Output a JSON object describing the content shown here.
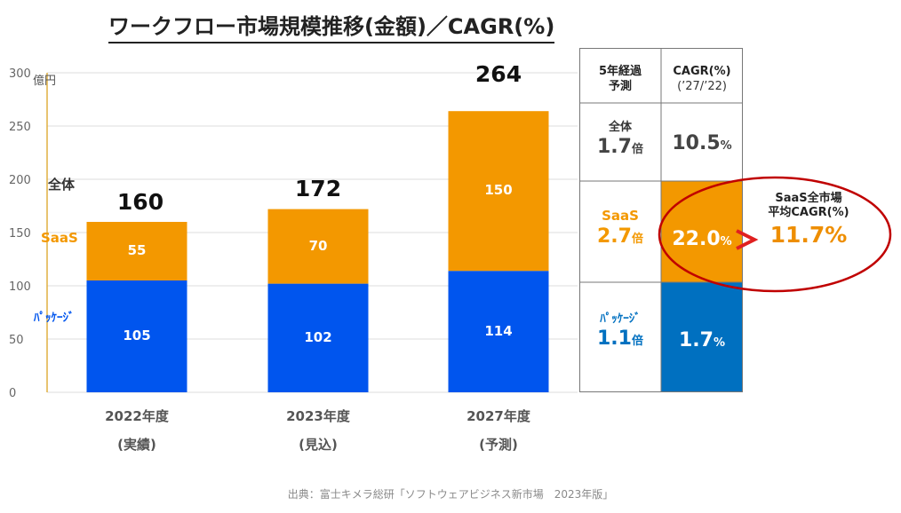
{
  "title": "ワークフロー市場規模推移(金額)／CAGR(%)",
  "unit_label": "億円",
  "source": "出典：富士キメラ総研「ソフトウェアビジネス新市場　2023年版」",
  "colors": {
    "saas": "#f39800",
    "package": "#0055ee",
    "package_table": "#0070c0",
    "axis": "#e0b040",
    "grid": "#dddddd",
    "callout_ellipse": "#c00000",
    "arrow": "#e02020"
  },
  "chart_data": {
    "type": "bar",
    "stacked": true,
    "title": "ワークフロー市場規模推移(金額)",
    "ylabel": "億円",
    "ylim": [
      0,
      300
    ],
    "yticks": [
      "0",
      "50",
      "100",
      "150",
      "200",
      "250",
      "300"
    ],
    "categories": [
      {
        "year": "2022年度",
        "note": "(実績)"
      },
      {
        "year": "2023年度",
        "note": "(見込)"
      },
      {
        "year": "2027年度",
        "note": "(予測)"
      }
    ],
    "series": [
      {
        "name": "パッケージ",
        "label": "ﾊﾟｯｹｰｼﾞ",
        "values": [
          105,
          102,
          114
        ]
      },
      {
        "name": "SaaS",
        "label": "SaaS",
        "values": [
          55,
          70,
          150
        ]
      }
    ],
    "totals": [
      160,
      172,
      264
    ],
    "total_label": "全体"
  },
  "table": {
    "header_col1": [
      "5年経過",
      "予測"
    ],
    "header_col2": [
      "CAGR(%)",
      "(’27/’22)"
    ],
    "rows": [
      {
        "label": "全体",
        "multiple": "1.7",
        "multiple_unit": "倍",
        "cagr": "10.5",
        "cagr_unit": "%"
      },
      {
        "label": "SaaS",
        "multiple": "2.7",
        "multiple_unit": "倍",
        "cagr": "22.0",
        "cagr_unit": "%"
      },
      {
        "label": "ﾊﾟｯｹｰｼﾞ",
        "multiple": "1.1",
        "multiple_unit": "倍",
        "cagr": "1.7",
        "cagr_unit": "%"
      }
    ]
  },
  "callout": {
    "title_line1": "SaaS全市場",
    "title_line2": "平均CAGR(%)",
    "value": "11.7%"
  }
}
